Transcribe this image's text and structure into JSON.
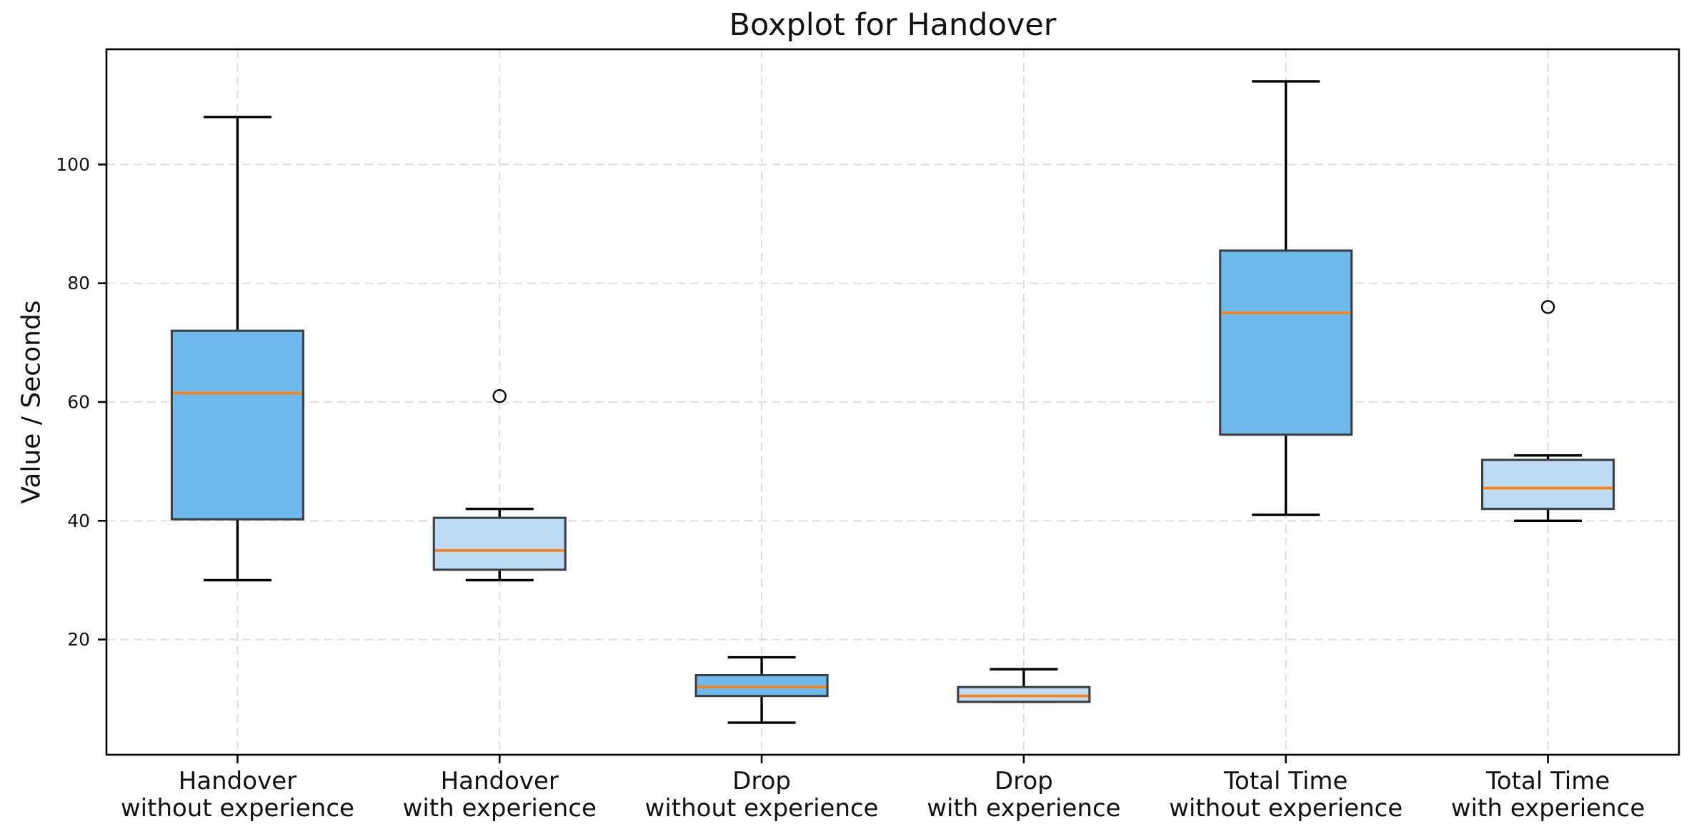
{
  "chart_data": {
    "type": "boxplot",
    "title": "Boxplot for Handover",
    "ylabel": "Value / Seconds",
    "ylim": [
      0.6,
      119.4
    ],
    "yticks": [
      20,
      40,
      60,
      80,
      100
    ],
    "grid": "dashed horizontal and vertical gridlines",
    "boxes": [
      {
        "category": "Handover\nwithout experience",
        "whislo": 30,
        "q1": 40.25,
        "med": 61.5,
        "q3": 72,
        "whishi": 108,
        "fliers": [],
        "fill": "#6fbaec"
      },
      {
        "category": "Handover\nwith experience",
        "whislo": 30,
        "q1": 31.75,
        "med": 35,
        "q3": 40.5,
        "whishi": 42,
        "fliers": [
          61
        ],
        "fill": "#bddcf3"
      },
      {
        "category": "Drop\nwithout experience",
        "whislo": 6,
        "q1": 10.5,
        "med": 12,
        "q3": 14,
        "whishi": 17,
        "fliers": [],
        "fill": "#6fbaec"
      },
      {
        "category": "Drop\nwith experience",
        "whislo": 9.5,
        "q1": 9.5,
        "med": 10.5,
        "q3": 12,
        "whishi": 15,
        "fliers": [],
        "fill": "#bddcf3"
      },
      {
        "category": "Total Time\nwithout experience",
        "whislo": 41,
        "q1": 54.5,
        "med": 75,
        "q3": 85.5,
        "whishi": 114,
        "fliers": [],
        "fill": "#6fbaec"
      },
      {
        "category": "Total Time\nwith experience",
        "whislo": 40,
        "q1": 42,
        "med": 45.5,
        "q3": 50.25,
        "whishi": 51,
        "fliers": [
          76
        ],
        "fill": "#bddcf3"
      }
    ],
    "colors": {
      "fill_without_experience": "#6fbaec",
      "fill_with_experience": "#bddcf3",
      "box_edge": "#3a3f44",
      "median": "#fd810d",
      "whisker": "#000000",
      "flier_edge": "#000000",
      "grid": "#e0e0e0",
      "spine": "#000000",
      "text": "#111111"
    }
  }
}
